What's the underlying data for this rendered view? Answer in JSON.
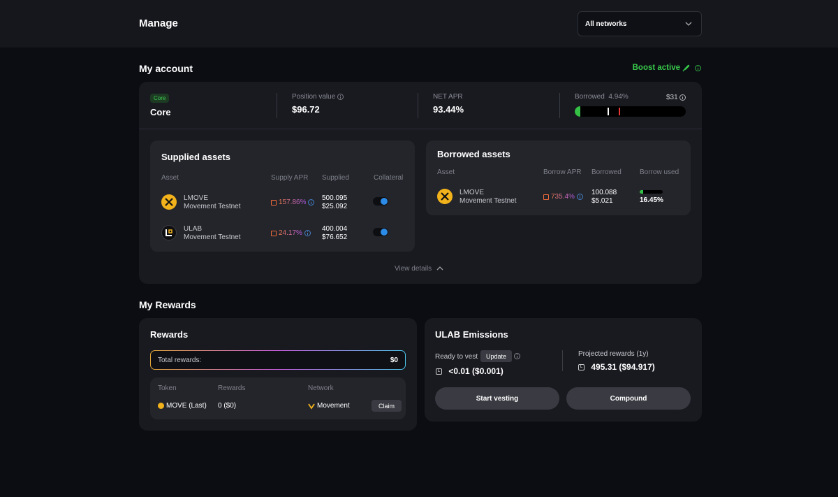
{
  "header": {
    "title": "Manage",
    "network_select": "All networks"
  },
  "account": {
    "title": "My account",
    "boost": "Boost active",
    "badge": "Core",
    "name": "Core",
    "position_label": "Position value",
    "position_value": "$96.72",
    "net_apr_label": "NET APR",
    "net_apr_value": "93.44%",
    "borrowed_label": "Borrowed",
    "borrowed_pct": "4.94%",
    "borrowed_amount": "$31",
    "borrowed_fill_fraction": 0.0494,
    "view_details": "View details"
  },
  "supplied": {
    "title": "Supplied assets",
    "headers": {
      "asset": "Asset",
      "apr": "Supply APR",
      "amount": "Supplied",
      "collateral": "Collateral"
    },
    "rows": [
      {
        "symbol": "LMOVE",
        "network": "Movement Testnet",
        "apr": "157.86%",
        "amount": "500.095",
        "usd": "$25.092",
        "collateral": true
      },
      {
        "symbol": "ULAB",
        "network": "Movement Testnet",
        "apr": "24.17%",
        "amount": "400.004",
        "usd": "$76.652",
        "collateral": true
      }
    ]
  },
  "borrowed": {
    "title": "Borrowed assets",
    "headers": {
      "asset": "Asset",
      "apr": "Borrow APR",
      "amount": "Borrowed",
      "used": "Borrow used"
    },
    "rows": [
      {
        "symbol": "LMOVE",
        "network": "Movement Testnet",
        "apr": "735.4%",
        "amount": "100.088",
        "usd": "$5.021",
        "used": "16.45%",
        "used_fraction": 0.1645
      }
    ]
  },
  "rewards_section": {
    "title": "My Rewards",
    "rewards": {
      "title": "Rewards",
      "total_label": "Total rewards:",
      "total_value": "$0",
      "headers": {
        "token": "Token",
        "rewards": "Rewards",
        "network": "Network"
      },
      "rows": [
        {
          "token": "MOVE (Last)",
          "rewards": "0 ($0)",
          "network": "Movement",
          "action": "Claim"
        }
      ]
    },
    "emissions": {
      "title": "ULAB Emissions",
      "vest_label": "Ready to vest",
      "update_label": "Update",
      "vest_value": "<0.01 ($0.001)",
      "projected_label": "Projected rewards (1y)",
      "projected_value": "495.31 ($94.917)",
      "start_vesting": "Start vesting",
      "compound": "Compound"
    }
  },
  "colors": {
    "accent_green": "#37c849",
    "toggle_blue": "#2b8be6",
    "danger_red": "#e53935"
  }
}
